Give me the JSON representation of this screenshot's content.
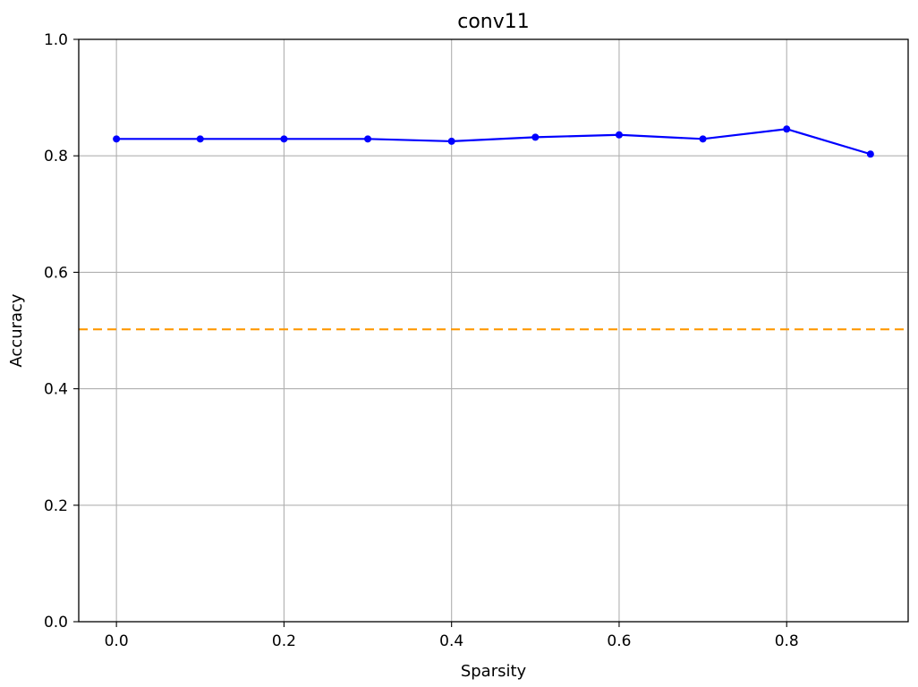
{
  "chart_data": {
    "type": "line",
    "title": "conv11",
    "xlabel": "Sparsity",
    "ylabel": "Accuracy",
    "xlim": [
      -0.045,
      0.945
    ],
    "ylim": [
      0.0,
      1.0
    ],
    "xticks": [
      0.0,
      0.2,
      0.4,
      0.6,
      0.8
    ],
    "xtick_labels": [
      "0.0",
      "0.2",
      "0.4",
      "0.6",
      "0.8"
    ],
    "yticks": [
      0.0,
      0.2,
      0.4,
      0.6,
      0.8,
      1.0
    ],
    "ytick_labels": [
      "0.0",
      "0.2",
      "0.4",
      "0.6",
      "0.8",
      "1.0"
    ],
    "grid": true,
    "series": [
      {
        "color": "#0000ff",
        "marker": "circle",
        "x": [
          0.0,
          0.1,
          0.2,
          0.3,
          0.4,
          0.5,
          0.6,
          0.7,
          0.8,
          0.9
        ],
        "y": [
          0.829,
          0.829,
          0.829,
          0.829,
          0.825,
          0.832,
          0.836,
          0.829,
          0.846,
          0.803
        ]
      }
    ],
    "reference_lines": [
      {
        "orientation": "horizontal",
        "y": 0.502,
        "style": "dashed",
        "color": "#ff9900"
      }
    ]
  }
}
